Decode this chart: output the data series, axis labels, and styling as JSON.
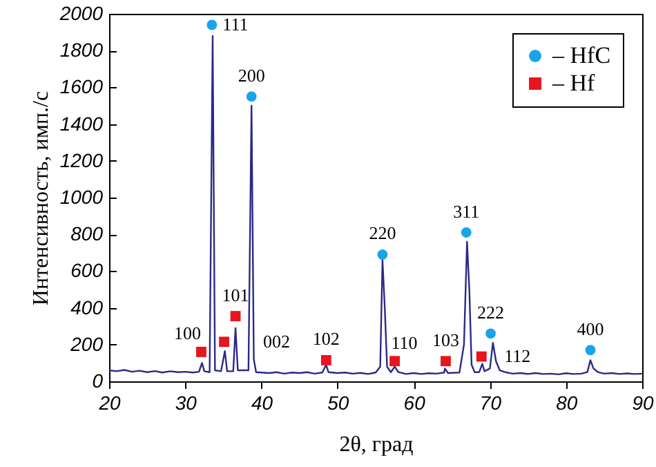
{
  "chart_data": {
    "type": "line",
    "xlabel": "2θ, град",
    "ylabel": "Интенсивность, имп./с",
    "xlim": [
      20,
      90
    ],
    "xticks": [
      20,
      30,
      40,
      50,
      60,
      70,
      80,
      90
    ],
    "ylim": [
      0,
      2000
    ],
    "yticks": [
      0,
      200,
      400,
      600,
      800,
      1000,
      1200,
      1400,
      1600,
      1800,
      2000
    ],
    "grid": false,
    "legend": "top right",
    "series": [
      {
        "color": "#2b2a86",
        "marker": "none",
        "x": [
          20,
          21,
          22,
          23,
          24,
          25,
          26,
          27,
          28,
          29,
          30,
          31,
          31.8,
          32.2,
          32.5,
          33.2,
          33.6,
          33.9,
          34.7,
          35.2,
          35.5,
          36.3,
          36.6,
          36.9,
          38.3,
          38.7,
          39.0,
          39.3,
          40,
          41,
          42,
          43,
          44,
          45,
          46,
          47,
          48,
          48.5,
          48.8,
          50,
          51,
          52,
          53,
          54,
          55,
          55.6,
          55.9,
          56.2,
          56.5,
          57,
          57.5,
          58,
          59,
          60,
          61,
          62,
          63,
          64,
          64.1,
          64.5,
          66,
          66.6,
          67.0,
          67.3,
          67.6,
          68,
          68.6,
          69.0,
          69.3,
          70,
          70.4,
          70.8,
          71.3,
          72,
          73,
          74,
          75,
          76,
          77,
          78,
          79,
          80,
          81,
          82,
          82.8,
          83.2,
          83.6,
          84.2,
          85,
          86,
          87,
          88,
          89,
          90
        ],
        "values": [
          60,
          55,
          62,
          52,
          58,
          50,
          56,
          48,
          55,
          50,
          52,
          48,
          52,
          100,
          55,
          50,
          1880,
          60,
          55,
          165,
          55,
          55,
          290,
          60,
          60,
          1500,
          120,
          50,
          48,
          45,
          50,
          42,
          48,
          45,
          50,
          42,
          48,
          90,
          50,
          45,
          48,
          42,
          46,
          40,
          48,
          80,
          660,
          400,
          80,
          50,
          80,
          50,
          40,
          45,
          40,
          44,
          42,
          48,
          70,
          45,
          48,
          200,
          760,
          500,
          90,
          50,
          50,
          95,
          55,
          70,
          210,
          110,
          60,
          50,
          42,
          45,
          40,
          45,
          40,
          42,
          38,
          44,
          40,
          42,
          50,
          115,
          70,
          50,
          42,
          45,
          40,
          43,
          40,
          42
        ]
      },
      {
        "type": "scatter",
        "name": "– HfC",
        "color": "#1aa3e8",
        "marker": "circle",
        "x": [
          33.5,
          38.7,
          55.9,
          66.9,
          70.1,
          83.2
        ],
        "values": [
          1940,
          1550,
          690,
          810,
          260,
          170
        ]
      },
      {
        "type": "scatter",
        "name": "– Hf",
        "color": "#e8141e",
        "marker": "square",
        "x": [
          32.1,
          35.1,
          36.6,
          48.5,
          57.5,
          64.2,
          68.9
        ],
        "values": [
          160,
          215,
          355,
          115,
          110,
          110,
          135
        ]
      }
    ],
    "annotations": [
      {
        "text": "111",
        "x": 33.5,
        "y": 1940
      },
      {
        "text": "200",
        "x": 38.7,
        "y": 1550
      },
      {
        "text": "100",
        "x": 32.1,
        "y": 160
      },
      {
        "text": "101",
        "x": 36.6,
        "y": 355
      },
      {
        "text": "002",
        "x": 35.1,
        "y": 215
      },
      {
        "text": "102",
        "x": 48.5,
        "y": 115
      },
      {
        "text": "220",
        "x": 55.9,
        "y": 690
      },
      {
        "text": "110",
        "x": 57.5,
        "y": 110
      },
      {
        "text": "103",
        "x": 64.2,
        "y": 110
      },
      {
        "text": "311",
        "x": 66.9,
        "y": 810
      },
      {
        "text": "222",
        "x": 70.1,
        "y": 260
      },
      {
        "text": "112",
        "x": 68.9,
        "y": 135
      },
      {
        "text": "400",
        "x": 83.2,
        "y": 170
      }
    ]
  }
}
